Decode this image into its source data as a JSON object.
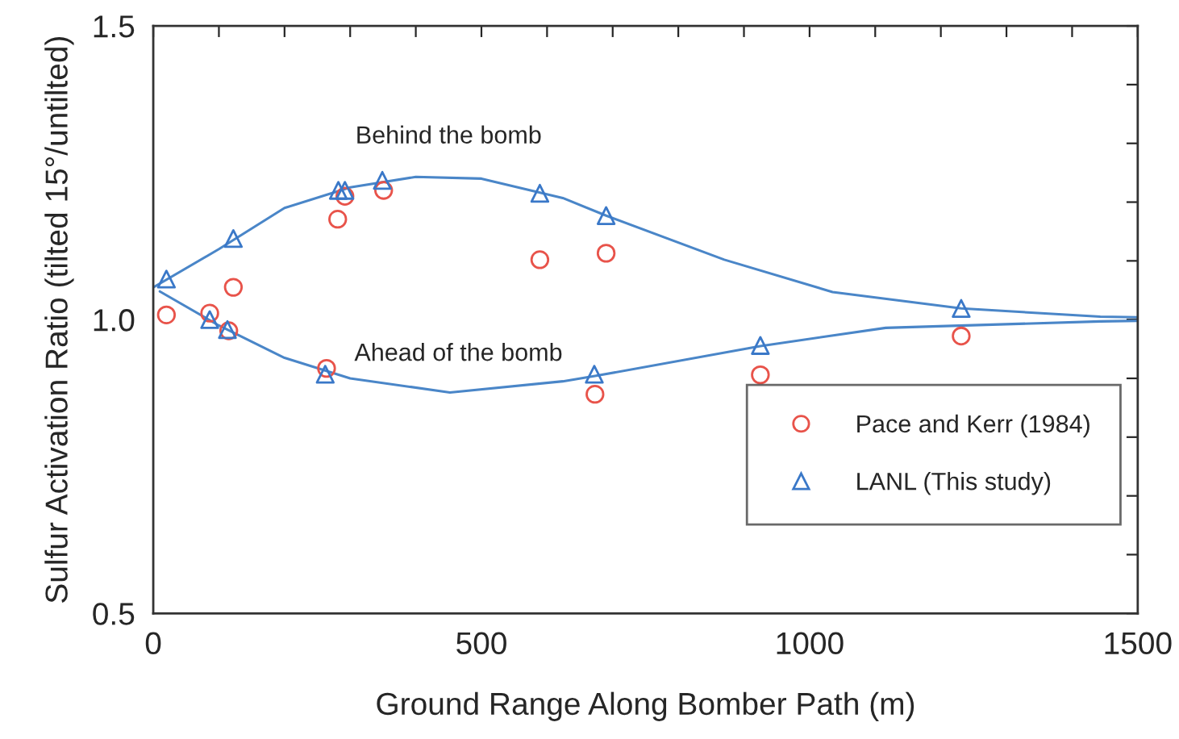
{
  "chart_data": {
    "type": "scatter",
    "xlabel": "Ground Range Along Bomber Path (m)",
    "ylabel": "Sulfur Activation Ratio (tilted 15°/untilted)",
    "xlim": [
      0,
      1500
    ],
    "ylim": [
      0.5,
      1.5
    ],
    "xticks": [
      0,
      {
        "value": 100,
        "label": null
      },
      {
        "value": 200,
        "label": null
      },
      {
        "value": 300,
        "label": null
      },
      {
        "value": 400,
        "label": null
      },
      500,
      {
        "value": 600,
        "label": null
      },
      {
        "value": 700,
        "label": null
      },
      {
        "value": 800,
        "label": null
      },
      {
        "value": 900,
        "label": null
      },
      1000,
      {
        "value": 1100,
        "label": null
      },
      {
        "value": 1200,
        "label": null
      },
      {
        "value": 1300,
        "label": null
      },
      {
        "value": 1400,
        "label": null
      },
      1500
    ],
    "yticks": [
      {
        "value": 0.5,
        "label": "0.5"
      },
      {
        "value": 0.6,
        "label": null
      },
      {
        "value": 0.7,
        "label": null
      },
      {
        "value": 0.8,
        "label": null
      },
      {
        "value": 0.9,
        "label": null
      },
      {
        "value": 1.0,
        "label": "1.0"
      },
      {
        "value": 1.1,
        "label": null
      },
      {
        "value": 1.2,
        "label": null
      },
      {
        "value": 1.3,
        "label": null
      },
      {
        "value": 1.4,
        "label": null
      },
      {
        "value": 1.5,
        "label": "1.5"
      }
    ],
    "annotations": [
      "Behind the bomb",
      "Ahead of the bomb"
    ],
    "legend": "right",
    "grid": false,
    "series": [
      {
        "type": "line",
        "color": "#4a86c8",
        "marker": "none",
        "x": [
          0,
          100,
          200,
          300,
          400,
          500,
          624,
          690,
          870,
          1035,
          1231,
          1443,
          1500
        ],
        "values": [
          1.055,
          1.12,
          1.19,
          1.225,
          1.243,
          1.24,
          1.207,
          1.177,
          1.102,
          1.047,
          1.019,
          1.005,
          1.004
        ]
      },
      {
        "type": "line",
        "color": "#4a86c8",
        "marker": "none",
        "x": [
          10,
          100,
          200,
          300,
          452,
          624,
          673,
          925,
          1116,
          1443,
          1500
        ],
        "values": [
          1.048,
          0.99,
          0.935,
          0.9,
          0.876,
          0.895,
          0.904,
          0.955,
          0.986,
          0.997,
          0.998
        ]
      },
      {
        "name": "Pace and Kerr (1984)",
        "color": "#e8534a",
        "marker": "circle",
        "x": [
          20,
          86,
          115,
          122,
          264,
          281,
          292,
          351,
          589,
          690,
          673,
          925,
          1231
        ],
        "values": [
          1.008,
          1.011,
          0.981,
          1.055,
          0.917,
          1.171,
          1.21,
          1.22,
          1.102,
          1.113,
          0.873,
          0.906,
          0.972
        ]
      },
      {
        "name": "LANL (This study)",
        "color": "#3a78c8",
        "marker": "triangle",
        "x": [
          20,
          86,
          113,
          122,
          262,
          282,
          292,
          349,
          589,
          690,
          672,
          925,
          1231
        ],
        "values": [
          1.069,
          1.0,
          0.983,
          1.138,
          0.907,
          1.22,
          1.22,
          1.237,
          1.215,
          1.177,
          0.907,
          0.956,
          1.019
        ]
      }
    ]
  }
}
